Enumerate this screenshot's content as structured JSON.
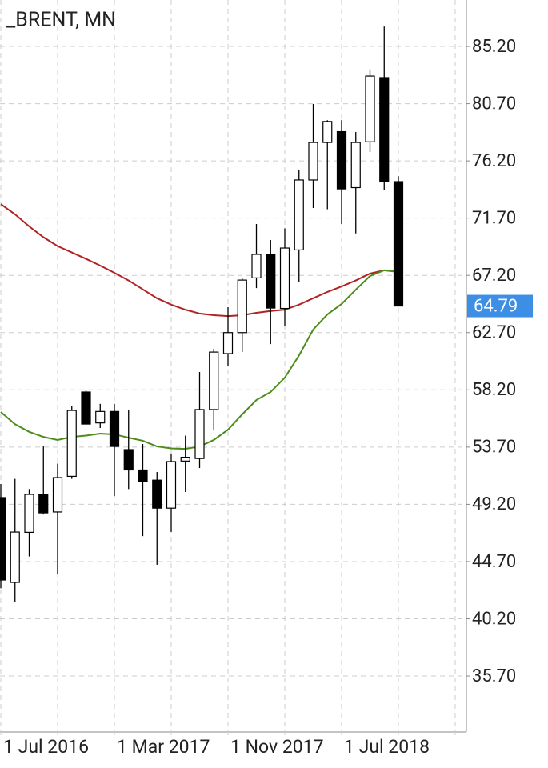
{
  "chart_data": {
    "type": "candlestick",
    "title": "_BRENT, MN",
    "categories": [
      "1 Jul 2016",
      null,
      null,
      null,
      null,
      null,
      null,
      null,
      "1 Mar 2017",
      null,
      null,
      null,
      null,
      null,
      null,
      null,
      "1 Nov 2017",
      null,
      null,
      null,
      null,
      null,
      null,
      null,
      "1 Jul 2018",
      null,
      null,
      null,
      null
    ],
    "open": [
      49.73,
      43.06,
      47.0,
      49.98,
      48.6,
      51.4,
      58.03,
      55.6,
      56.5,
      53.5,
      51.9,
      51.1,
      48.9,
      52.6,
      52.8,
      56.65,
      61.05,
      62.7,
      67.0,
      68.85,
      64.6,
      69.2,
      74.7,
      77.65,
      78.5,
      74.1,
      77.7,
      82.75,
      74.57
    ],
    "high": [
      50.8,
      51.2,
      50.4,
      53.75,
      52.4,
      56.9,
      58.2,
      57.1,
      57.1,
      56.65,
      53.94,
      51.74,
      53.19,
      54.6,
      59.6,
      61.43,
      64.7,
      67.0,
      71.24,
      69.98,
      70.9,
      75.5,
      80.67,
      79.4,
      79.4,
      78.47,
      83.4,
      86.77,
      75.0
    ],
    "low": [
      42.6,
      41.55,
      45.1,
      48.4,
      43.7,
      51.2,
      55.51,
      55.2,
      49.85,
      50.4,
      46.7,
      44.45,
      47.03,
      50.17,
      52.05,
      55.0,
      60.04,
      61.17,
      66.2,
      61.8,
      63.2,
      66.7,
      72.5,
      72.4,
      71.24,
      70.5,
      76.9,
      73.94,
      64.79
    ],
    "close": [
      43.25,
      47.02,
      49.98,
      48.53,
      51.3,
      56.58,
      55.51,
      56.5,
      53.75,
      51.9,
      50.99,
      48.9,
      52.56,
      52.9,
      56.65,
      61.17,
      62.7,
      66.83,
      68.85,
      64.63,
      69.35,
      74.7,
      77.65,
      79.3,
      74.0,
      77.65,
      82.87,
      74.57,
      64.79
    ],
    "lines": [
      {
        "color": "#b22222",
        "values": [
          72.8,
          72.0,
          71.05,
          70.2,
          69.5,
          69.0,
          68.5,
          67.97,
          67.4,
          66.8,
          66.1,
          65.4,
          64.9,
          64.5,
          64.2,
          64.07,
          64.0,
          64.07,
          64.26,
          64.4,
          64.5,
          64.9,
          65.4,
          65.9,
          66.33,
          66.8,
          67.34,
          67.6,
          67.47
        ]
      },
      {
        "color": "#4d8c1a",
        "values": [
          56.46,
          55.5,
          54.9,
          54.5,
          54.26,
          54.5,
          54.6,
          54.76,
          54.7,
          54.44,
          54.2,
          53.75,
          53.6,
          53.56,
          53.75,
          54.26,
          55.07,
          56.27,
          57.4,
          58.03,
          59.16,
          60.9,
          62.94,
          64.13,
          64.95,
          66.08,
          67.15,
          67.6,
          67.47
        ]
      }
    ],
    "last_price": 64.79,
    "last_price_color": "#3d8fe6",
    "up_color": "#ffffff",
    "down_color": "#000000",
    "ylim": [
      31.3,
      88.85
    ],
    "yticks": [
      {
        "value": 85.2,
        "label": "85.20"
      },
      {
        "value": 80.7,
        "label": "80.70"
      },
      {
        "value": 76.2,
        "label": "76.20"
      },
      {
        "value": 71.7,
        "label": "71.70"
      },
      {
        "value": 67.2,
        "label": "67.20"
      },
      {
        "value": 62.7,
        "label": "62.70"
      },
      {
        "value": 58.2,
        "label": "58.20"
      },
      {
        "value": 53.7,
        "label": "53.70"
      },
      {
        "value": 49.2,
        "label": "49.20"
      },
      {
        "value": 44.7,
        "label": "44.70"
      },
      {
        "value": 40.2,
        "label": "40.20"
      },
      {
        "value": 35.7,
        "label": "35.70"
      }
    ],
    "grid": true
  }
}
